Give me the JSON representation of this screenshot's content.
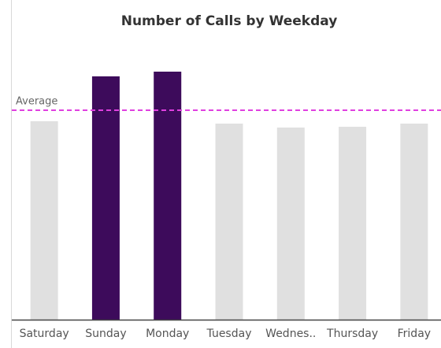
{
  "chart_data": {
    "type": "bar",
    "title": "Number of Calls by Weekday",
    "categories": [
      "Saturday",
      "Sunday",
      "Monday",
      "Tuesday",
      "Wednes..",
      "Thursday",
      "Friday"
    ],
    "values": [
      252,
      309,
      315,
      249,
      244,
      245,
      249
    ],
    "colors": [
      "#e0e0e0",
      "#3d0b5b",
      "#3d0b5b",
      "#e0e0e0",
      "#e0e0e0",
      "#e0e0e0",
      "#e0e0e0"
    ],
    "ylim": [
      0,
      330
    ],
    "average": {
      "label": "Average",
      "value": 266,
      "color": "#e040e0"
    }
  }
}
